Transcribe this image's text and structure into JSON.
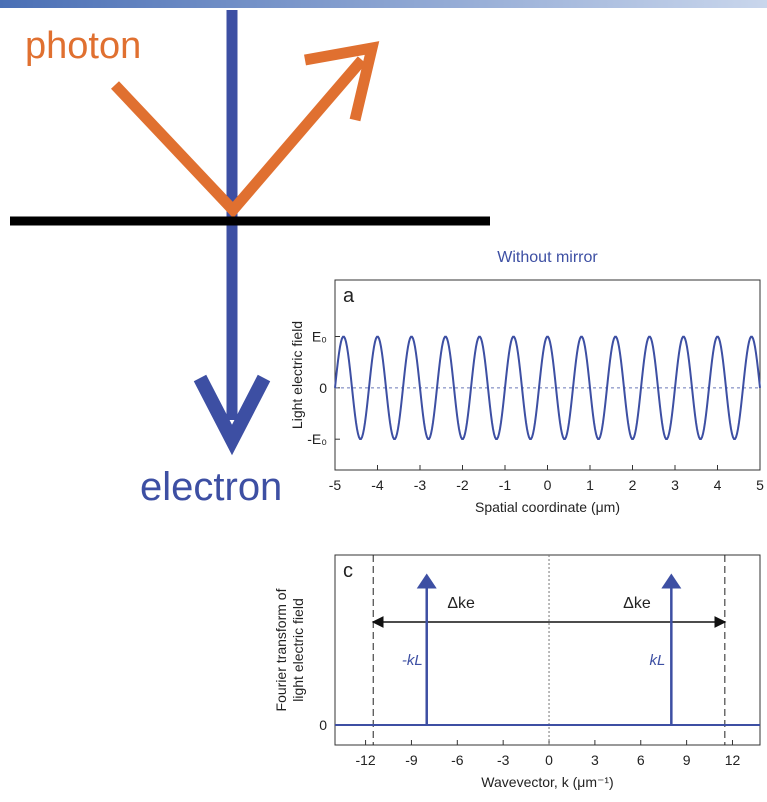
{
  "diagram": {
    "photon": "photon",
    "electron": "electron"
  },
  "chart_data": [
    {
      "type": "wave",
      "title": "Without mirror",
      "panel": "a",
      "ylabel": "Light electric field",
      "xlabel": "Spatial coordinate (μm)",
      "xlim": [
        -5,
        5
      ],
      "xticks": [
        -5,
        -4,
        -3,
        -2,
        -1,
        0,
        1,
        2,
        3,
        4,
        5
      ],
      "ylim": [
        -1.6,
        2.1
      ],
      "yticks": [
        {
          "value": 1,
          "label": "E₀"
        },
        0,
        {
          "value": -1,
          "label": "-E₀"
        }
      ],
      "wave": {
        "amplitude": 1,
        "wavelength": 0.8
      },
      "color": "#3d4fa3"
    },
    {
      "type": "stem",
      "panel": "c",
      "ylabel": [
        "Fourier transform of",
        "light electric field"
      ],
      "xlabel": "Wavevector, k (μm⁻¹)",
      "xlim": [
        -14,
        13.8
      ],
      "xticks": [
        -12,
        -9,
        -6,
        -3,
        0,
        3,
        6,
        9,
        12
      ],
      "ylim": [
        -0.2,
        1.7
      ],
      "yticks": [
        0
      ],
      "x": [
        -8,
        8
      ],
      "values": [
        1.55,
        1.55
      ],
      "value_labels": [
        "-kL",
        "kL"
      ],
      "vlines": [
        -11.5,
        11.5
      ],
      "delta_label": "Δke",
      "color": "#3d4fa3"
    }
  ]
}
